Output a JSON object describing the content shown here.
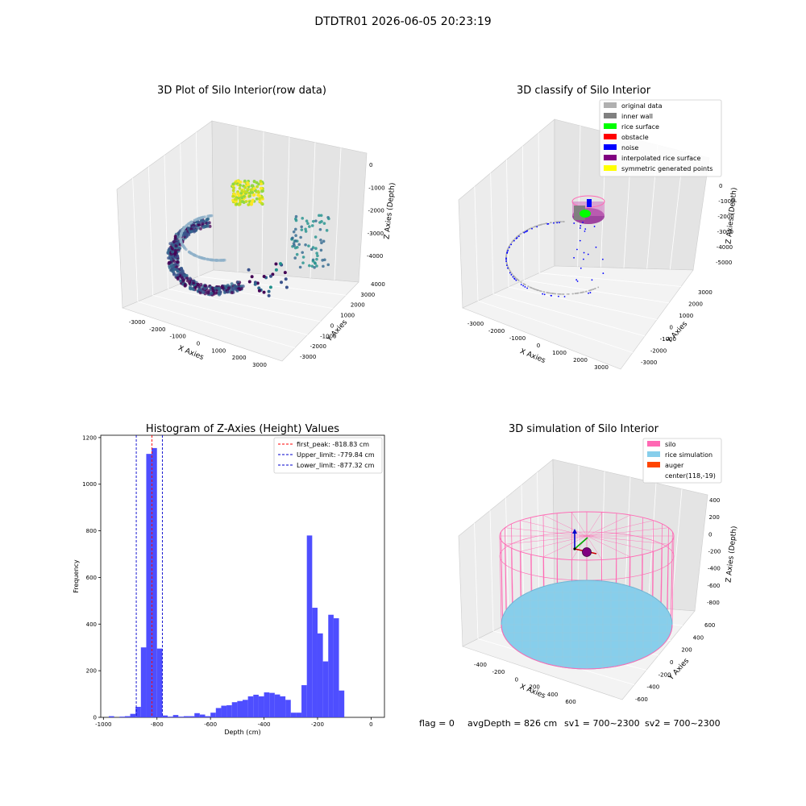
{
  "figure": {
    "suptitle": "DTDTR01 2026-06-05 20:23:19",
    "footer": {
      "flag": "flag = 0",
      "avg_depth": "avgDepth = 826 cm",
      "sv1": "sv1 = 700~2300",
      "sv2": "sv2 = 700~2300"
    }
  },
  "panels": {
    "raw": {
      "title": "3D Plot of Silo Interior(row data)",
      "xlabel": "X Axies",
      "ylabel": "Y Axies",
      "zlabel": "Z Axies (Depth)",
      "xticks": [
        "-3000",
        "-2000",
        "-1000",
        "0",
        "1000",
        "2000",
        "3000"
      ],
      "yticks": [
        "4000",
        "3000",
        "2000",
        "1000",
        "0",
        "-1000",
        "-2000",
        "-3000"
      ],
      "zticks": [
        "0",
        "-1000",
        "-2000",
        "-3000",
        "-4000"
      ]
    },
    "classify": {
      "title": "3D classify of Silo Interior",
      "xlabel": "X Axies",
      "ylabel": "Y Axies",
      "zlabel": "Z Axies (Depth)",
      "xticks": [
        "-3000",
        "-2000",
        "-1000",
        "0",
        "1000",
        "2000",
        "3000"
      ],
      "yticks": [
        "3000",
        "2000",
        "1000",
        "0",
        "-1000",
        "-2000",
        "-3000"
      ],
      "zticks": [
        "0",
        "-1000",
        "-2000",
        "-3000",
        "-4000",
        "-5000"
      ],
      "legend": [
        {
          "label": "original data",
          "color": "#b0b0b0"
        },
        {
          "label": "inner wall",
          "color": "#808080"
        },
        {
          "label": "rice surface",
          "color": "#00ff00"
        },
        {
          "label": "obstacle",
          "color": "#ff0000"
        },
        {
          "label": "noise",
          "color": "#0000ff"
        },
        {
          "label": "interpolated rice surface",
          "color": "#800080"
        },
        {
          "label": "symmetric generated points",
          "color": "#ffff00"
        }
      ]
    },
    "simulation": {
      "title": "3D simulation of Silo Interior",
      "xlabel": "X Axies",
      "ylabel": "Y Axies",
      "zlabel": "Z Axies (Depth)",
      "xticks": [
        "-400",
        "-200",
        "0",
        "200",
        "400",
        "600"
      ],
      "yticks": [
        "600",
        "400",
        "200",
        "0",
        "-200",
        "-400",
        "-600"
      ],
      "zticks": [
        "400",
        "200",
        "0",
        "-200",
        "-400",
        "-600",
        "-800"
      ],
      "legend": [
        {
          "label": "silo",
          "color": "#ff69b4"
        },
        {
          "label": "rice simulation",
          "color": "#87ceeb"
        },
        {
          "label": "auger",
          "color": "#ff4500"
        },
        {
          "label": "center(118,-19)",
          "color": "none"
        }
      ]
    }
  },
  "chart_data": {
    "type": "bar",
    "title": "Histogram of Z-Axies (Height) Values",
    "xlabel": "Depth (cm)",
    "ylabel": "Frequency",
    "xlim": [
      -1010,
      50
    ],
    "ylim": [
      0,
      1210
    ],
    "bin_width": 20,
    "bar_color": "#4444ff",
    "xticks": [
      -1000,
      -800,
      -600,
      -400,
      -200,
      0
    ],
    "yticks": [
      0,
      200,
      400,
      600,
      800,
      1000,
      1200
    ],
    "bins": [
      {
        "x0": -980,
        "value": 5
      },
      {
        "x0": -960,
        "value": 0
      },
      {
        "x0": -940,
        "value": 3
      },
      {
        "x0": -920,
        "value": 5
      },
      {
        "x0": -900,
        "value": 15
      },
      {
        "x0": -880,
        "value": 45
      },
      {
        "x0": -860,
        "value": 300
      },
      {
        "x0": -840,
        "value": 1130
      },
      {
        "x0": -820,
        "value": 1155
      },
      {
        "x0": -800,
        "value": 295
      },
      {
        "x0": -780,
        "value": 8
      },
      {
        "x0": -760,
        "value": 3
      },
      {
        "x0": -740,
        "value": 10
      },
      {
        "x0": -720,
        "value": 3
      },
      {
        "x0": -700,
        "value": 5
      },
      {
        "x0": -680,
        "value": 5
      },
      {
        "x0": -660,
        "value": 18
      },
      {
        "x0": -640,
        "value": 12
      },
      {
        "x0": -620,
        "value": 5
      },
      {
        "x0": -600,
        "value": 20
      },
      {
        "x0": -580,
        "value": 40
      },
      {
        "x0": -560,
        "value": 50
      },
      {
        "x0": -540,
        "value": 52
      },
      {
        "x0": -520,
        "value": 65
      },
      {
        "x0": -500,
        "value": 70
      },
      {
        "x0": -480,
        "value": 75
      },
      {
        "x0": -460,
        "value": 90
      },
      {
        "x0": -440,
        "value": 97
      },
      {
        "x0": -420,
        "value": 90
      },
      {
        "x0": -400,
        "value": 107
      },
      {
        "x0": -380,
        "value": 105
      },
      {
        "x0": -360,
        "value": 98
      },
      {
        "x0": -340,
        "value": 90
      },
      {
        "x0": -320,
        "value": 75
      },
      {
        "x0": -300,
        "value": 20
      },
      {
        "x0": -280,
        "value": 20
      },
      {
        "x0": -260,
        "value": 138
      },
      {
        "x0": -240,
        "value": 780
      },
      {
        "x0": -220,
        "value": 470
      },
      {
        "x0": -200,
        "value": 360
      },
      {
        "x0": -180,
        "value": 240
      },
      {
        "x0": -160,
        "value": 440
      },
      {
        "x0": -140,
        "value": 425
      },
      {
        "x0": -120,
        "value": 115
      }
    ],
    "reference_lines": [
      {
        "label": "first_peak: -818.83 cm",
        "x": -818.83,
        "color": "#ff0000"
      },
      {
        "label": "Upper_limit: -779.84 cm",
        "x": -779.84,
        "color": "#0000cc"
      },
      {
        "label": "Lower_limit: -877.32 cm",
        "x": -877.32,
        "color": "#0000cc"
      }
    ]
  }
}
